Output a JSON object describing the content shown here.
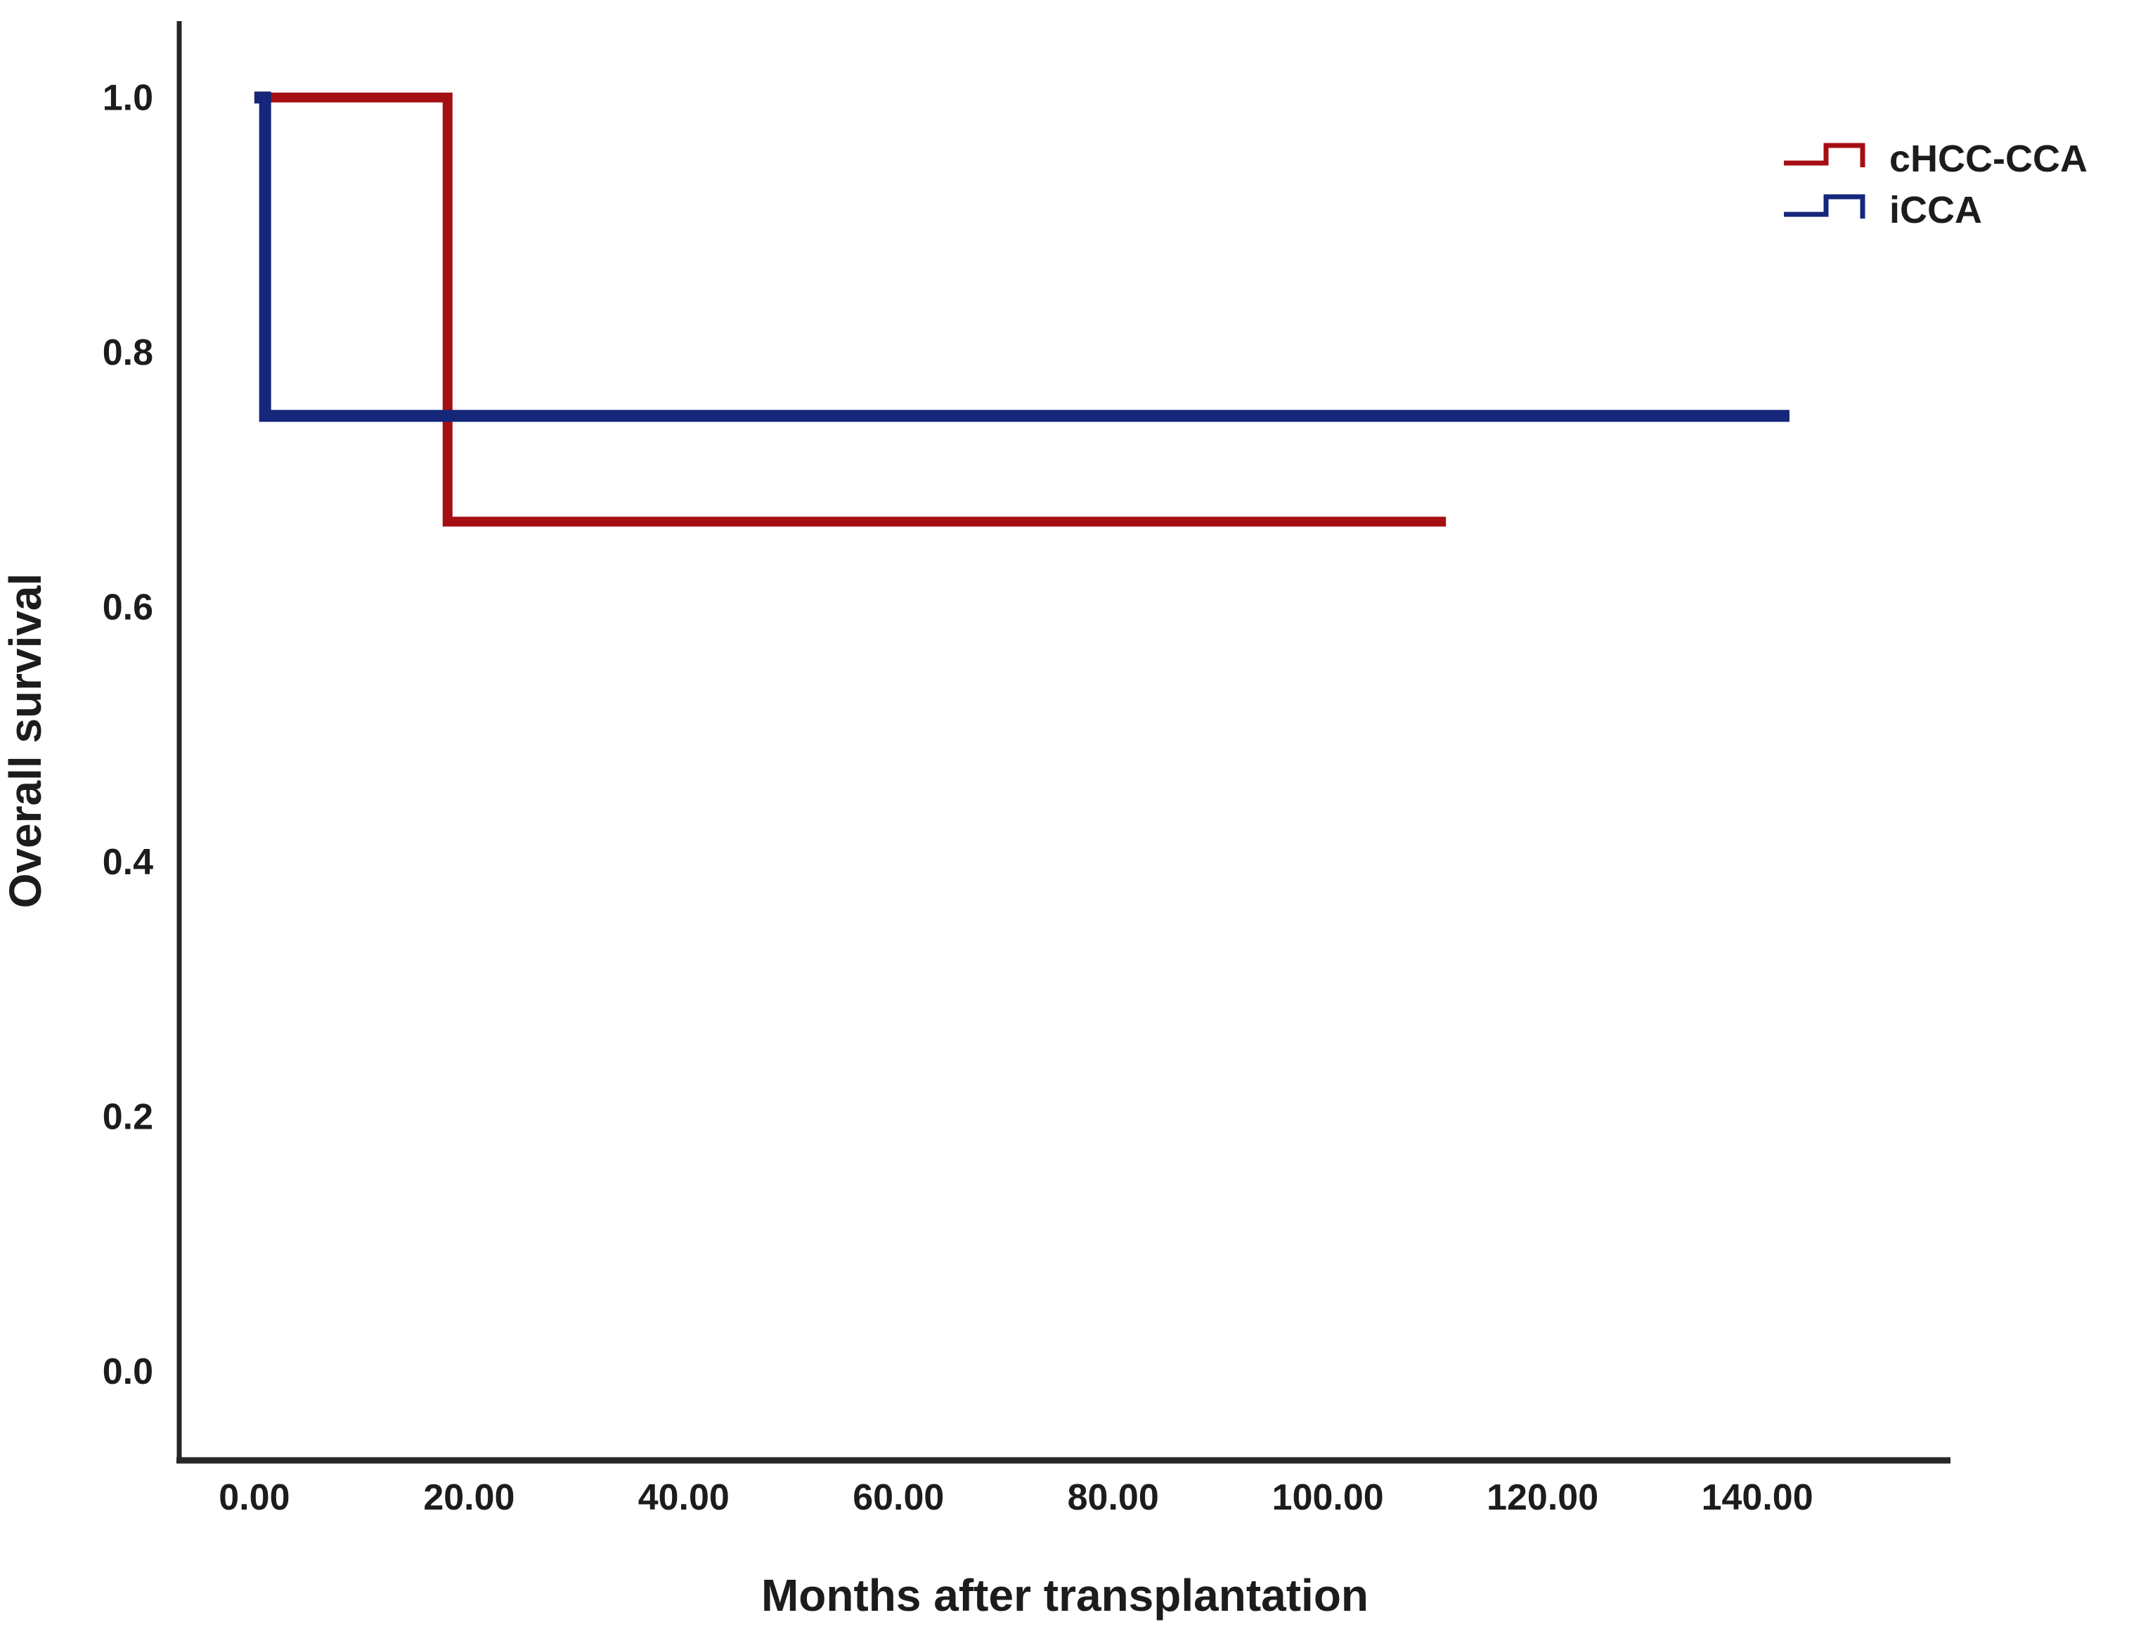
{
  "chart_data": {
    "type": "line",
    "subtype": "kaplan-meier-step",
    "title": "",
    "xlabel": "Months after transplantation",
    "ylabel": "Overall survival",
    "xlim": [
      -7,
      158
    ],
    "ylim": [
      -0.07,
      1.06
    ],
    "grid": false,
    "legend_position": "top-right",
    "x_tick_values": [
      0,
      20,
      40,
      60,
      80,
      100,
      120,
      140
    ],
    "x_tick_labels": [
      "0.00",
      "20.00",
      "40.00",
      "60.00",
      "80.00",
      "100.00",
      "120.00",
      "140.00"
    ],
    "y_tick_values": [
      0.0,
      0.2,
      0.4,
      0.6,
      0.8,
      1.0
    ],
    "y_tick_labels": [
      "0.0",
      "0.2",
      "0.4",
      "0.6",
      "0.8",
      "1.0"
    ],
    "series": [
      {
        "name": "cHCC-CCA",
        "color": "#A50E13",
        "stroke_width": 14,
        "points": [
          [
            0,
            1.0
          ],
          [
            18,
            1.0
          ],
          [
            18,
            0.667
          ],
          [
            111,
            0.667
          ]
        ]
      },
      {
        "name": "iCCA",
        "color": "#14277A",
        "stroke_width": 17,
        "points": [
          [
            0,
            1.0
          ],
          [
            1,
            1.0
          ],
          [
            1,
            0.75
          ],
          [
            143,
            0.75
          ]
        ]
      }
    ]
  }
}
